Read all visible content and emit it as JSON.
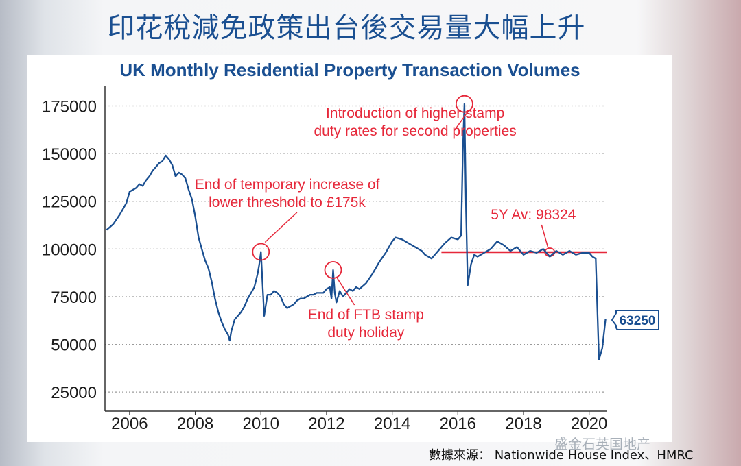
{
  "slide": {
    "title": "印花稅減免政策出台後交易量大幅上升",
    "source": "數據來源： Nationwide House Index、HMRC",
    "watermark": "盛金石英国地产"
  },
  "colors": {
    "line": "#1a4f91",
    "accent": "#e6283a",
    "grid": "#9a9a9a",
    "title": "#1a4f91"
  },
  "chart_data": {
    "type": "line",
    "title": "UK Monthly Residential Property Transaction Volumes",
    "xlabel": "",
    "ylabel": "",
    "xlim": [
      2005.25,
      2020.55
    ],
    "ylim": [
      15000,
      182000
    ],
    "grid": true,
    "x_ticks": [
      "2006",
      "2008",
      "2010",
      "2012",
      "2014",
      "2016",
      "2018",
      "2020"
    ],
    "y_ticks": [
      "175000",
      "150000",
      "125000",
      "100000",
      "75000",
      "50000",
      "25000"
    ],
    "series": [
      {
        "name": "",
        "x": [
          2005.3,
          2005.5,
          2005.7,
          2005.9,
          2006.0,
          2006.1,
          2006.2,
          2006.3,
          2006.4,
          2006.5,
          2006.6,
          2006.7,
          2006.8,
          2006.9,
          2007.0,
          2007.1,
          2007.2,
          2007.3,
          2007.4,
          2007.5,
          2007.6,
          2007.7,
          2007.8,
          2007.9,
          2008.0,
          2008.1,
          2008.2,
          2008.3,
          2008.4,
          2008.5,
          2008.6,
          2008.7,
          2008.8,
          2008.9,
          2009.0,
          2009.05,
          2009.1,
          2009.2,
          2009.3,
          2009.4,
          2009.5,
          2009.6,
          2009.7,
          2009.8,
          2009.9,
          2009.95,
          2010.0,
          2010.05,
          2010.1,
          2010.2,
          2010.3,
          2010.4,
          2010.5,
          2010.6,
          2010.7,
          2010.8,
          2010.9,
          2011.0,
          2011.1,
          2011.2,
          2011.3,
          2011.4,
          2011.5,
          2011.6,
          2011.7,
          2011.8,
          2011.9,
          2012.0,
          2012.1,
          2012.15,
          2012.2,
          2012.25,
          2012.3,
          2012.4,
          2012.5,
          2012.6,
          2012.7,
          2012.8,
          2012.9,
          2013.0,
          2013.2,
          2013.4,
          2013.6,
          2013.8,
          2014.0,
          2014.1,
          2014.3,
          2014.5,
          2014.7,
          2014.9,
          2015.0,
          2015.2,
          2015.4,
          2015.6,
          2015.8,
          2016.0,
          2016.1,
          2016.15,
          2016.2,
          2016.25,
          2016.3,
          2016.4,
          2016.5,
          2016.6,
          2016.8,
          2017.0,
          2017.2,
          2017.4,
          2017.6,
          2017.8,
          2018.0,
          2018.2,
          2018.4,
          2018.6,
          2018.8,
          2019.0,
          2019.2,
          2019.4,
          2019.6,
          2019.8,
          2020.0,
          2020.1,
          2020.2,
          2020.3,
          2020.4,
          2020.5
        ],
        "values": [
          110000,
          113000,
          118000,
          124000,
          130000,
          131000,
          132000,
          134000,
          133000,
          136000,
          138000,
          141000,
          143000,
          145000,
          146000,
          149000,
          147000,
          144000,
          138000,
          140000,
          139000,
          137000,
          131000,
          126000,
          117000,
          106000,
          100000,
          94000,
          90000,
          83000,
          74000,
          67000,
          62000,
          58000,
          55000,
          52000,
          57000,
          63000,
          65000,
          67000,
          70000,
          74000,
          77000,
          80000,
          87000,
          92000,
          98500,
          82000,
          65000,
          76000,
          76000,
          78000,
          77000,
          75000,
          71000,
          69000,
          70000,
          71000,
          73000,
          74000,
          74000,
          75000,
          76000,
          76000,
          77000,
          77000,
          77000,
          79000,
          80000,
          74000,
          89000,
          77000,
          72000,
          78000,
          75000,
          77000,
          79000,
          78000,
          80000,
          79000,
          82000,
          87000,
          93000,
          98000,
          104000,
          106000,
          105000,
          103000,
          101000,
          99000,
          97000,
          95000,
          99000,
          103000,
          106000,
          105000,
          107000,
          150000,
          176000,
          120000,
          81000,
          92000,
          97000,
          96000,
          98000,
          100000,
          104000,
          102000,
          99000,
          101000,
          97000,
          99000,
          98000,
          100000,
          96000,
          99000,
          97000,
          99000,
          97000,
          98000,
          98000,
          96000,
          95000,
          42000,
          48000,
          63250
        ]
      }
    ],
    "average_line": {
      "label": "5Y Av: 98324",
      "value": 98324,
      "x_start": 2015.5,
      "x_end": 2020.55
    },
    "end_label": "63250",
    "annotations": [
      {
        "id": "threshold",
        "lines": [
          "End of temporary increase of",
          "lower threshold to £175k"
        ],
        "x": 2010.0,
        "y": 98500
      },
      {
        "id": "ftb",
        "lines": [
          "End of FTB stamp",
          "duty holiday"
        ],
        "x": 2012.2,
        "y": 89000
      },
      {
        "id": "stamp",
        "lines": [
          "Introduction of higher stamp",
          "duty rates for second properties"
        ],
        "x": 2016.2,
        "y": 176000
      }
    ]
  }
}
